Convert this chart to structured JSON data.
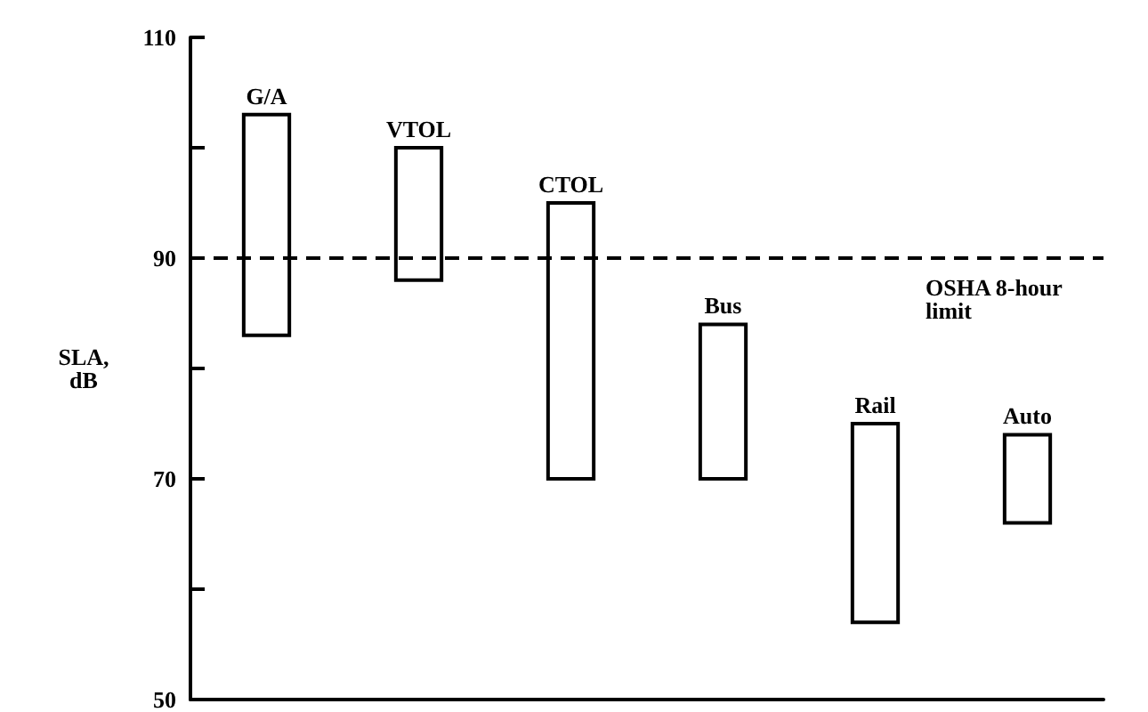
{
  "chart_data": {
    "type": "bar",
    "ylabel": "SLA,\ndB",
    "categories": [
      "G/A",
      "VTOL",
      "CTOL",
      "Bus",
      "Rail",
      "Auto"
    ],
    "base": [
      83,
      88,
      70,
      70,
      57,
      66
    ],
    "values": [
      20,
      12,
      25,
      14,
      18,
      8
    ],
    "color": "#000000",
    "ylim": [
      50,
      110
    ],
    "yticks": [
      50,
      {
        "value": 60,
        "label": null
      },
      70,
      {
        "value": 80,
        "label": null
      },
      90,
      {
        "value": 100,
        "label": null
      },
      110
    ],
    "tick_labels": "y",
    "grid": false,
    "ref_lines": [
      {
        "axis": "y",
        "value": 90,
        "label": "OSHA 8-hour\nlimit",
        "color": "#000000",
        "line_style": "dashed"
      }
    ]
  }
}
